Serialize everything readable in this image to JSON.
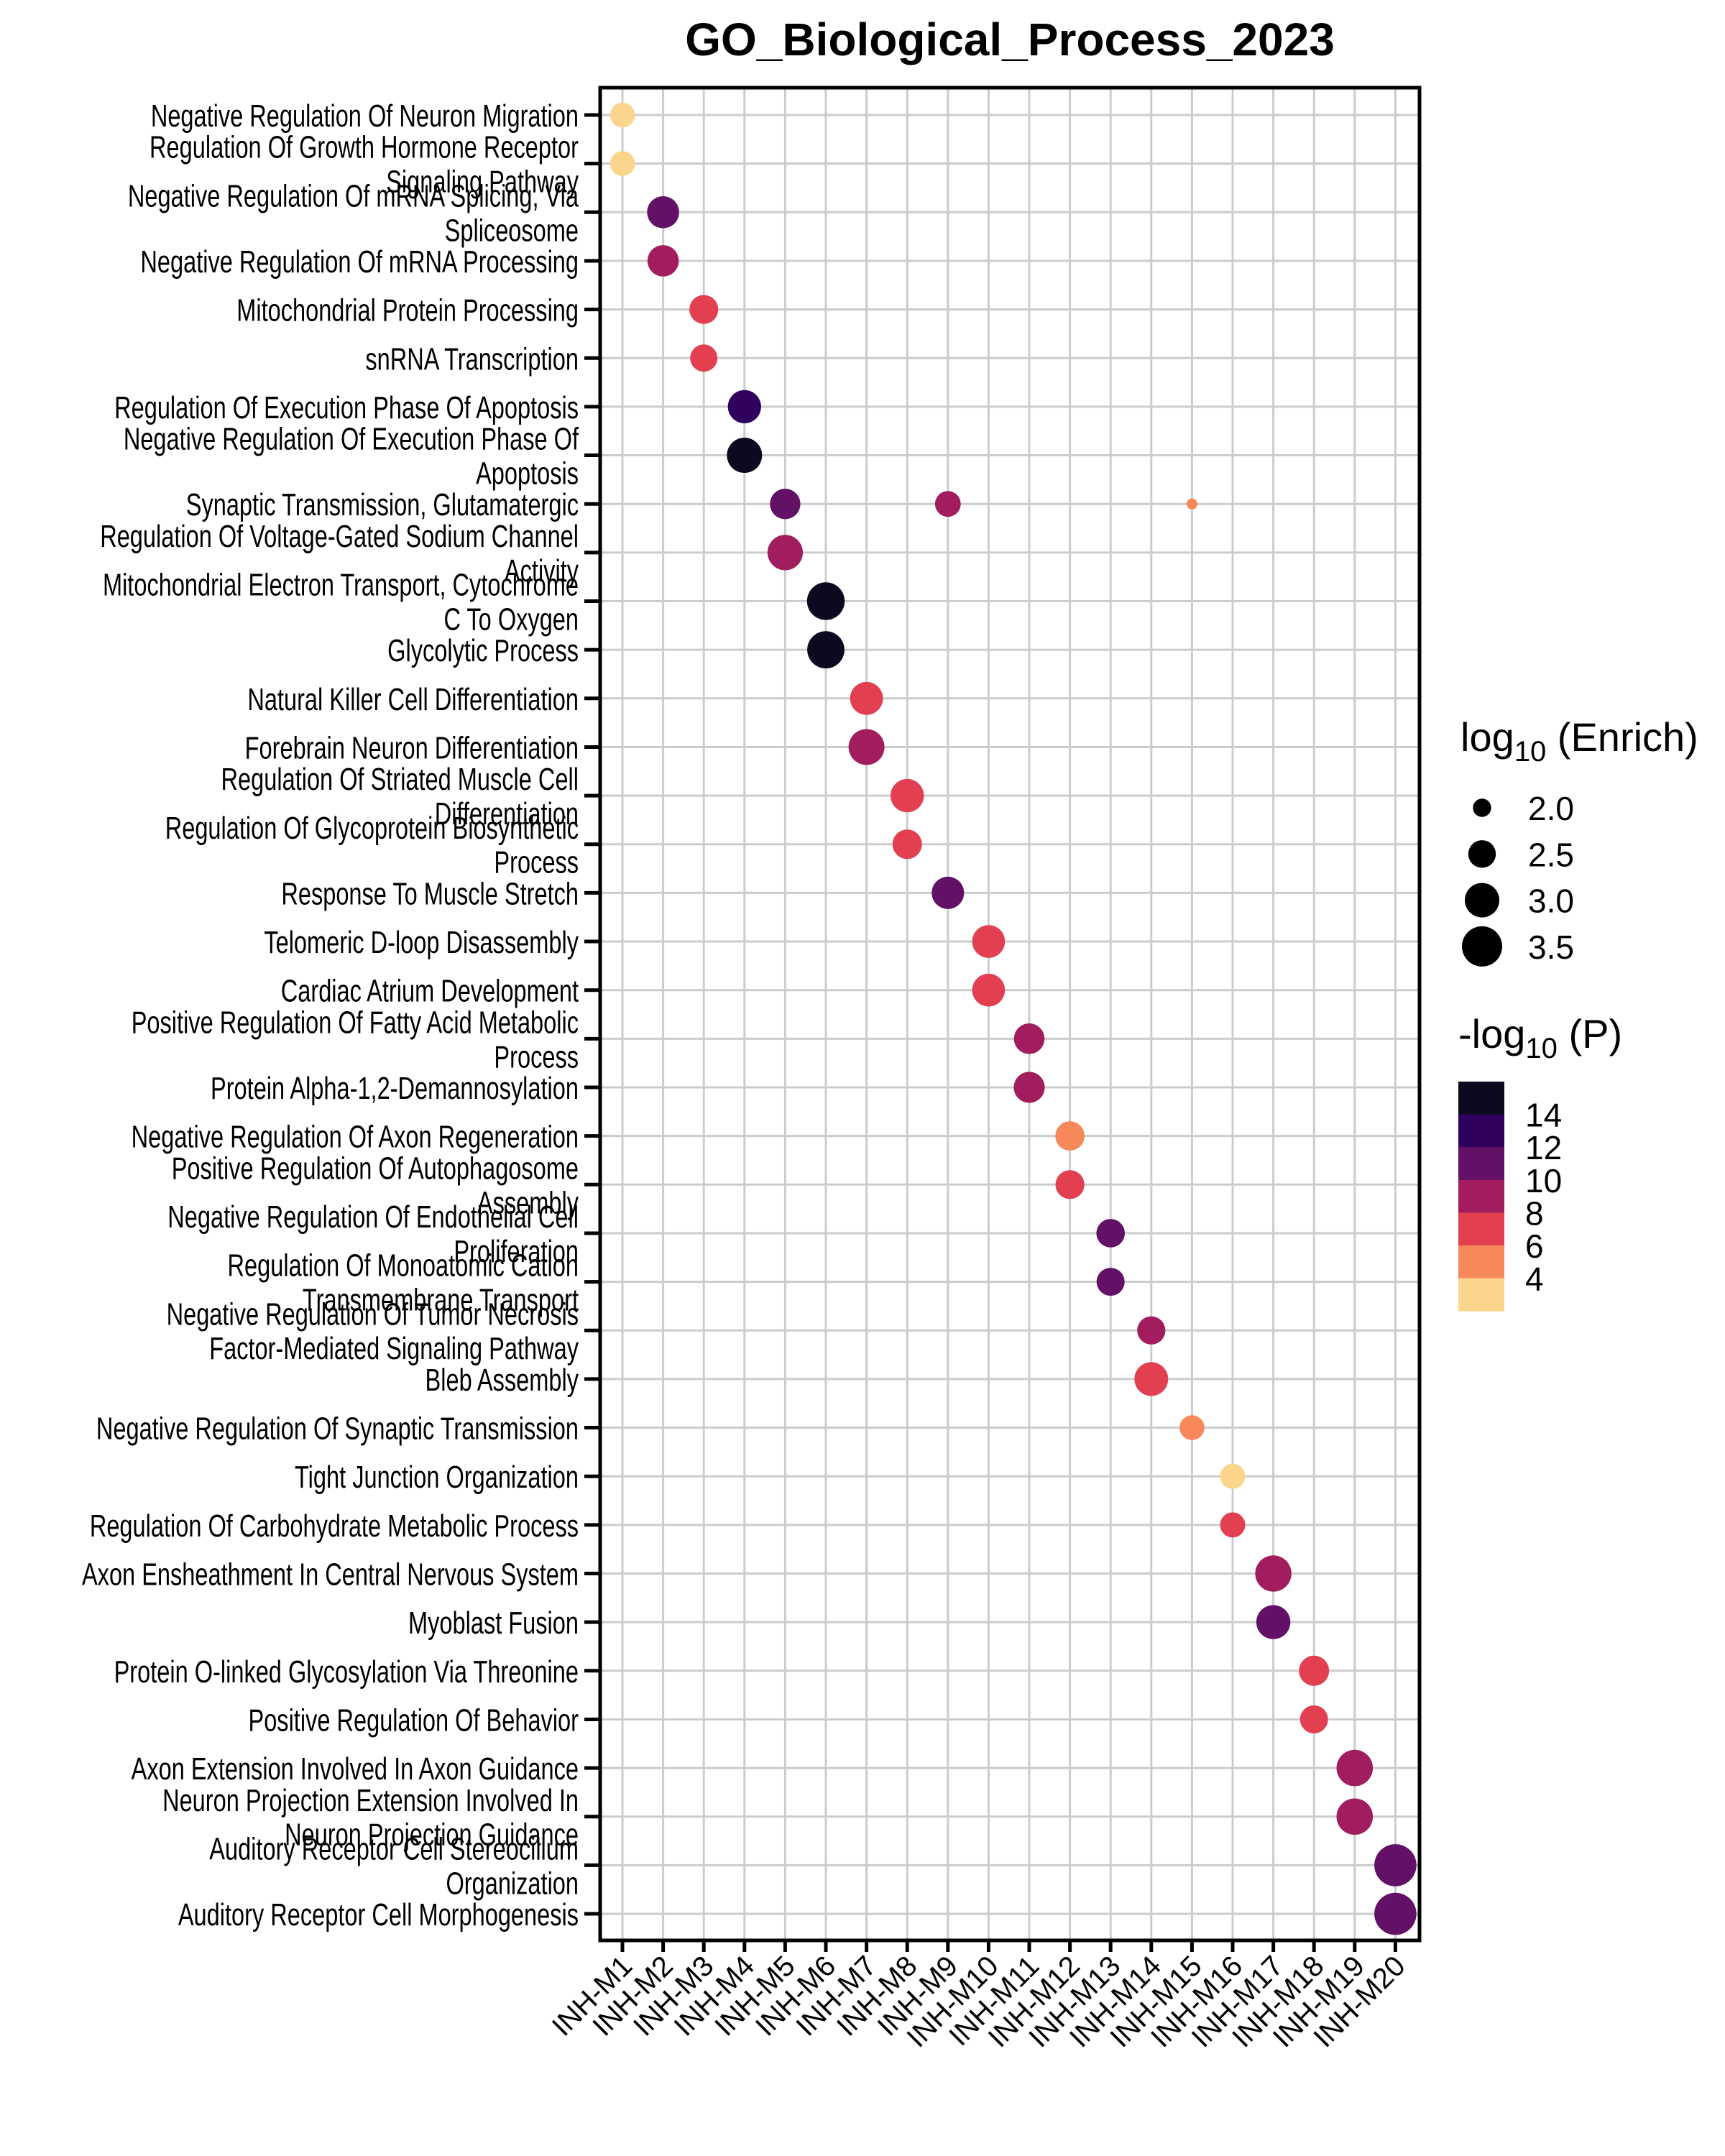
{
  "chart_data": {
    "type": "scatter",
    "subtype": "dot-plot",
    "title": "GO_Biological_Process_2023",
    "xlabel": "",
    "ylabel": "",
    "grid": true,
    "legend_position": "right",
    "x_categories": [
      "INH-M1",
      "INH-M2",
      "INH-M3",
      "INH-M4",
      "INH-M5",
      "INH-M6",
      "INH-M7",
      "INH-M8",
      "INH-M9",
      "INH-M10",
      "INH-M11",
      "INH-M12",
      "INH-M13",
      "INH-M14",
      "INH-M15",
      "INH-M16",
      "INH-M17",
      "INH-M18",
      "INH-M19",
      "INH-M20"
    ],
    "y_categories": [
      [
        "Negative Regulation Of Neuron Migration"
      ],
      [
        "Regulation Of Growth Hormone Receptor",
        "Signaling Pathway"
      ],
      [
        "Negative Regulation Of mRNA Splicing, Via",
        "Spliceosome"
      ],
      [
        "Negative Regulation Of mRNA Processing"
      ],
      [
        "Mitochondrial Protein Processing"
      ],
      [
        "snRNA Transcription"
      ],
      [
        "Regulation Of Execution Phase Of Apoptosis"
      ],
      [
        "Negative Regulation Of Execution Phase Of",
        "Apoptosis"
      ],
      [
        "Synaptic Transmission, Glutamatergic"
      ],
      [
        "Regulation Of Voltage-Gated Sodium Channel",
        "Activity"
      ],
      [
        "Mitochondrial Electron Transport, Cytochrome",
        "C To Oxygen"
      ],
      [
        "Glycolytic Process"
      ],
      [
        "Natural Killer Cell Differentiation"
      ],
      [
        "Forebrain Neuron Differentiation"
      ],
      [
        "Regulation Of Striated Muscle Cell",
        "Differentiation"
      ],
      [
        "Regulation Of Glycoprotein Biosynthetic",
        "Process"
      ],
      [
        "Response To Muscle Stretch"
      ],
      [
        "Telomeric D-loop Disassembly"
      ],
      [
        "Cardiac Atrium Development"
      ],
      [
        "Positive Regulation Of Fatty Acid Metabolic",
        "Process"
      ],
      [
        "Protein Alpha-1,2-Demannosylation"
      ],
      [
        "Negative Regulation Of Axon Regeneration"
      ],
      [
        "Positive Regulation Of Autophagosome",
        "Assembly"
      ],
      [
        "Negative Regulation Of Endothelial Cell",
        "Proliferation"
      ],
      [
        "Regulation Of Monoatomic Cation",
        "Transmembrane Transport"
      ],
      [
        "Negative Regulation Of Tumor Necrosis",
        "Factor-Mediated Signaling Pathway"
      ],
      [
        "Bleb Assembly"
      ],
      [
        "Negative Regulation Of Synaptic Transmission"
      ],
      [
        "Tight Junction Organization"
      ],
      [
        "Regulation Of Carbohydrate Metabolic Process"
      ],
      [
        "Axon Ensheathment In Central Nervous System"
      ],
      [
        "Myoblast Fusion"
      ],
      [
        "Protein O-linked Glycosylation Via Threonine"
      ],
      [
        "Positive Regulation Of Behavior"
      ],
      [
        "Axon Extension Involved In Axon Guidance"
      ],
      [
        "Neuron Projection Extension Involved In",
        "Neuron Projection Guidance"
      ],
      [
        "Auditory Receptor Cell Stereocilium",
        "Organization"
      ],
      [
        "Auditory Receptor Cell Morphogenesis"
      ]
    ],
    "points": [
      {
        "row": 0,
        "module": "INH-M1",
        "log10_enrich": 2.33,
        "neg_log10_p": 3.5
      },
      {
        "row": 1,
        "module": "INH-M1",
        "log10_enrich": 2.33,
        "neg_log10_p": 3.5
      },
      {
        "row": 2,
        "module": "INH-M2",
        "log10_enrich": 2.81,
        "neg_log10_p": 11
      },
      {
        "row": 3,
        "module": "INH-M2",
        "log10_enrich": 2.76,
        "neg_log10_p": 9
      },
      {
        "row": 4,
        "module": "INH-M3",
        "log10_enrich": 2.59,
        "neg_log10_p": 7
      },
      {
        "row": 5,
        "module": "INH-M3",
        "log10_enrich": 2.48,
        "neg_log10_p": 7
      },
      {
        "row": 6,
        "module": "INH-M4",
        "log10_enrich": 2.9,
        "neg_log10_p": 13
      },
      {
        "row": 7,
        "module": "INH-M4",
        "log10_enrich": 3.06,
        "neg_log10_p": 15
      },
      {
        "row": 8,
        "module": "INH-M5",
        "log10_enrich": 2.69,
        "neg_log10_p": 11
      },
      {
        "row": 8,
        "module": "INH-M9",
        "log10_enrich": 2.38,
        "neg_log10_p": 9
      },
      {
        "row": 8,
        "module": "INH-M15",
        "log10_enrich": 1.75,
        "neg_log10_p": 5
      },
      {
        "row": 9,
        "module": "INH-M5",
        "log10_enrich": 3.07,
        "neg_log10_p": 9
      },
      {
        "row": 10,
        "module": "INH-M6",
        "log10_enrich": 3.26,
        "neg_log10_p": 15
      },
      {
        "row": 11,
        "module": "INH-M6",
        "log10_enrich": 3.23,
        "neg_log10_p": 15
      },
      {
        "row": 12,
        "module": "INH-M7",
        "log10_enrich": 2.88,
        "neg_log10_p": 7
      },
      {
        "row": 13,
        "module": "INH-M7",
        "log10_enrich": 3.12,
        "neg_log10_p": 9
      },
      {
        "row": 14,
        "module": "INH-M8",
        "log10_enrich": 2.91,
        "neg_log10_p": 7
      },
      {
        "row": 15,
        "module": "INH-M8",
        "log10_enrich": 2.62,
        "neg_log10_p": 7
      },
      {
        "row": 16,
        "module": "INH-M9",
        "log10_enrich": 2.83,
        "neg_log10_p": 11
      },
      {
        "row": 17,
        "module": "INH-M10",
        "log10_enrich": 2.87,
        "neg_log10_p": 7
      },
      {
        "row": 18,
        "module": "INH-M10",
        "log10_enrich": 2.87,
        "neg_log10_p": 7
      },
      {
        "row": 19,
        "module": "INH-M11",
        "log10_enrich": 2.71,
        "neg_log10_p": 9
      },
      {
        "row": 20,
        "module": "INH-M11",
        "log10_enrich": 2.74,
        "neg_log10_p": 9
      },
      {
        "row": 21,
        "module": "INH-M12",
        "log10_enrich": 2.61,
        "neg_log10_p": 5
      },
      {
        "row": 22,
        "module": "INH-M12",
        "log10_enrich": 2.59,
        "neg_log10_p": 7
      },
      {
        "row": 23,
        "module": "INH-M13",
        "log10_enrich": 2.56,
        "neg_log10_p": 11
      },
      {
        "row": 24,
        "module": "INH-M13",
        "log10_enrich": 2.53,
        "neg_log10_p": 11
      },
      {
        "row": 25,
        "module": "INH-M14",
        "log10_enrich": 2.54,
        "neg_log10_p": 9
      },
      {
        "row": 26,
        "module": "INH-M14",
        "log10_enrich": 2.94,
        "neg_log10_p": 7
      },
      {
        "row": 27,
        "module": "INH-M15",
        "log10_enrich": 2.33,
        "neg_log10_p": 5
      },
      {
        "row": 28,
        "module": "INH-M16",
        "log10_enrich": 2.35,
        "neg_log10_p": 3.5
      },
      {
        "row": 29,
        "module": "INH-M16",
        "log10_enrich": 2.35,
        "neg_log10_p": 7
      },
      {
        "row": 30,
        "module": "INH-M17",
        "log10_enrich": 3.14,
        "neg_log10_p": 9
      },
      {
        "row": 31,
        "module": "INH-M17",
        "log10_enrich": 2.96,
        "neg_log10_p": 11
      },
      {
        "row": 32,
        "module": "INH-M18",
        "log10_enrich": 2.67,
        "neg_log10_p": 7
      },
      {
        "row": 33,
        "module": "INH-M18",
        "log10_enrich": 2.53,
        "neg_log10_p": 7
      },
      {
        "row": 34,
        "module": "INH-M19",
        "log10_enrich": 3.16,
        "neg_log10_p": 9
      },
      {
        "row": 35,
        "module": "INH-M19",
        "log10_enrich": 3.16,
        "neg_log10_p": 9
      },
      {
        "row": 36,
        "module": "INH-M20",
        "log10_enrich": 3.68,
        "neg_log10_p": 11
      },
      {
        "row": 37,
        "module": "INH-M20",
        "log10_enrich": 3.68,
        "neg_log10_p": 11
      }
    ],
    "size_legend": {
      "title_main": "log",
      "title_sub": "10",
      "title_rest": " (Enrich)",
      "breaks": [
        2.0,
        2.5,
        3.0,
        3.5
      ],
      "labels": [
        "2.0",
        "2.5",
        "3.0",
        "3.5"
      ],
      "marker_color": "#000000"
    },
    "color_legend": {
      "title_main": "-log",
      "title_sub": "10",
      "title_rest": " (P)",
      "labels": [
        "14",
        "12",
        "10",
        "8",
        "6",
        "4"
      ],
      "bins": [
        {
          "min": 14,
          "max": 16,
          "color": "#0c0a1e"
        },
        {
          "min": 12,
          "max": 14,
          "color": "#30005e"
        },
        {
          "min": 10,
          "max": 12,
          "color": "#621167"
        },
        {
          "min": 8,
          "max": 10,
          "color": "#a11d5e"
        },
        {
          "min": 6,
          "max": 8,
          "color": "#e23f51"
        },
        {
          "min": 4,
          "max": 6,
          "color": "#f7885a"
        },
        {
          "min": 2,
          "max": 4,
          "color": "#fbd58c"
        }
      ]
    }
  }
}
